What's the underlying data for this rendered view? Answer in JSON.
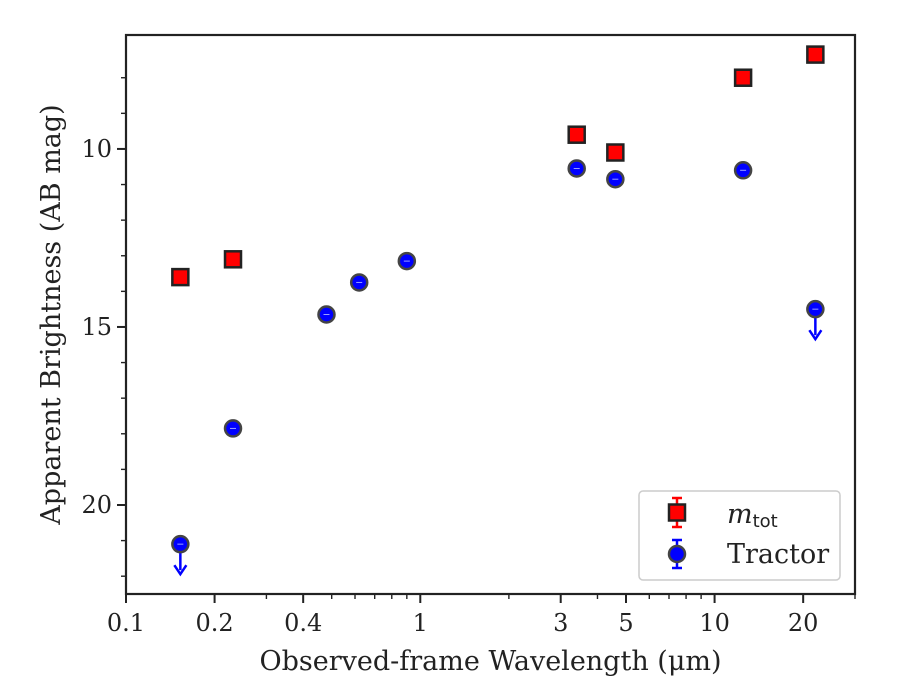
{
  "chart_data": {
    "type": "scatter",
    "xlabel": "Observed-frame Wavelength (μm)",
    "ylabel": "Apparent Brightness (AB mag)",
    "x_scale": "log",
    "xlim": [
      0.1,
      30
    ],
    "ylim": [
      22.5,
      6.8
    ],
    "y_inverted": true,
    "x_ticks": [
      {
        "value": 0.1,
        "label": "0.1"
      },
      {
        "value": 0.2,
        "label": "0.2"
      },
      {
        "value": 0.4,
        "label": "0.4"
      },
      {
        "value": 1,
        "label": "1"
      },
      {
        "value": 3,
        "label": "3"
      },
      {
        "value": 5,
        "label": "5"
      },
      {
        "value": 10,
        "label": "10"
      },
      {
        "value": 20,
        "label": "20"
      }
    ],
    "y_ticks": [
      {
        "value": 10,
        "label": "10"
      },
      {
        "value": 15,
        "label": "15"
      },
      {
        "value": 20,
        "label": "20"
      }
    ],
    "grid": false,
    "legend_position": "bottom-right",
    "series": [
      {
        "name": "m_tot",
        "legend_main": "m",
        "legend_sub": "tot",
        "marker": "square",
        "color": "#ff0000",
        "edge_color": "#222222",
        "points": [
          {
            "x": 0.153,
            "y": 13.6,
            "upper_limit": false
          },
          {
            "x": 0.231,
            "y": 13.1,
            "upper_limit": false
          },
          {
            "x": 3.4,
            "y": 9.6,
            "upper_limit": false
          },
          {
            "x": 4.6,
            "y": 10.1,
            "upper_limit": false
          },
          {
            "x": 12.5,
            "y": 8.0,
            "upper_limit": false
          },
          {
            "x": 22.0,
            "y": 7.35,
            "upper_limit": false
          }
        ]
      },
      {
        "name": "Tractor",
        "marker": "circle",
        "color": "#0000ff",
        "edge_color": "#444444",
        "points": [
          {
            "x": 0.153,
            "y": 21.1,
            "upper_limit": true
          },
          {
            "x": 0.231,
            "y": 17.85,
            "upper_limit": false
          },
          {
            "x": 0.48,
            "y": 14.65,
            "upper_limit": false
          },
          {
            "x": 0.62,
            "y": 13.75,
            "upper_limit": false
          },
          {
            "x": 0.9,
            "y": 13.15,
            "upper_limit": false
          },
          {
            "x": 3.4,
            "y": 10.55,
            "upper_limit": false
          },
          {
            "x": 4.6,
            "y": 10.85,
            "upper_limit": false
          },
          {
            "x": 12.5,
            "y": 10.6,
            "upper_limit": false
          },
          {
            "x": 22.0,
            "y": 14.5,
            "upper_limit": true
          }
        ]
      }
    ]
  }
}
